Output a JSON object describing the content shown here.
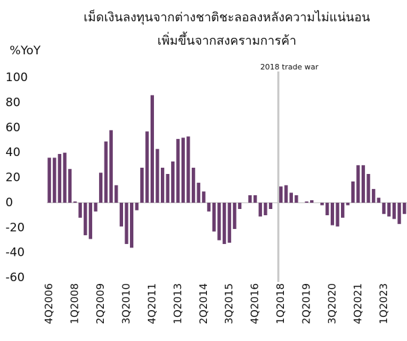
{
  "chart_data": {
    "type": "bar",
    "title": [
      "เม็ดเงินลงทุนจากต่างชาติชะลอลงหลังความไม่แน่นอน",
      "เพิ่มขึ้นจากสงครามการค้า"
    ],
    "ylabel": "%YoY",
    "annotation": "2018 trade war",
    "annotation_category": "1Q2018",
    "categories": [
      "4Q2006",
      null,
      null,
      null,
      null,
      "1Q2008",
      null,
      null,
      null,
      null,
      "2Q2009",
      null,
      null,
      null,
      null,
      "3Q2010",
      null,
      null,
      null,
      null,
      "4Q2011",
      null,
      null,
      null,
      null,
      "1Q2013",
      null,
      null,
      null,
      null,
      "2Q2014",
      null,
      null,
      null,
      null,
      "3Q2015",
      null,
      null,
      null,
      null,
      "4Q2016",
      null,
      null,
      null,
      null,
      "1Q2018",
      null,
      null,
      null,
      null,
      "2Q2019",
      null,
      null,
      null,
      null,
      "3Q2020",
      null,
      null,
      null,
      null,
      "4Q2021",
      null,
      null,
      null,
      null,
      "1Q2023",
      null,
      null,
      null,
      null
    ],
    "values": [
      36,
      36,
      39,
      40,
      27,
      1,
      -12,
      -26,
      -29,
      -7,
      24,
      49,
      58,
      14,
      -19,
      -33,
      -36,
      -6,
      28,
      57,
      86,
      43,
      28,
      23,
      33,
      51,
      52,
      53,
      28,
      16,
      9,
      -7,
      -23,
      -30,
      -33,
      -32,
      -21,
      -5,
      0,
      6,
      6,
      -11,
      -10,
      -5,
      0,
      13,
      14,
      8,
      6,
      0,
      1,
      2,
      0,
      -2,
      -10,
      -18,
      -19,
      -12,
      -2,
      17,
      30,
      30,
      23,
      11,
      4,
      -9,
      -11,
      -13,
      -17,
      -9
    ],
    "color": "#6a3d6e",
    "ylim": [
      -60,
      100
    ],
    "yticks": [
      100,
      80,
      60,
      40,
      20,
      0,
      -20,
      -40,
      -60
    ]
  }
}
